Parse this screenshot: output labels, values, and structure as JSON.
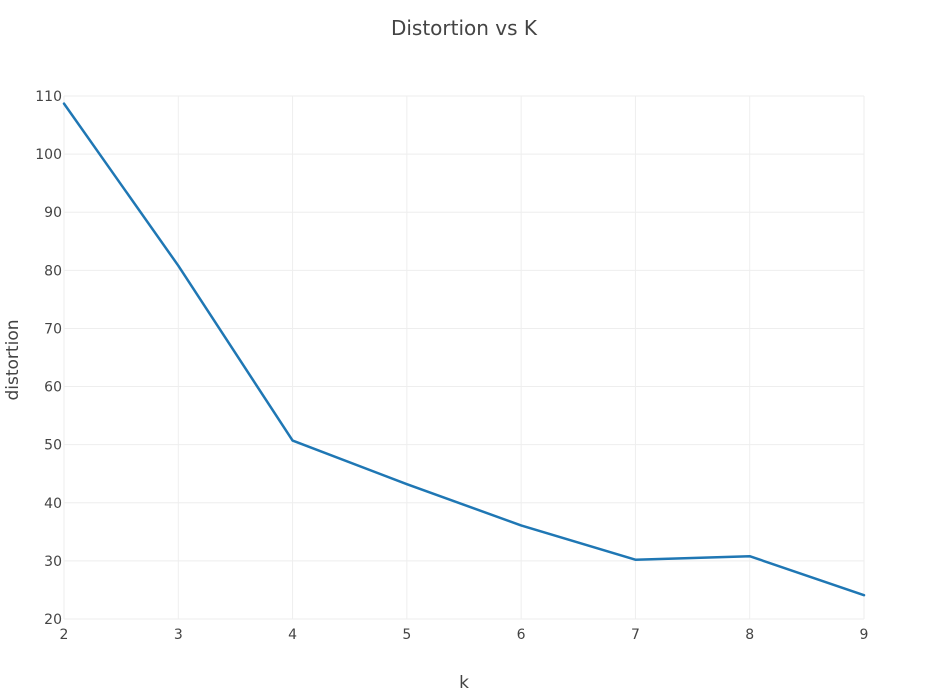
{
  "chart_data": {
    "type": "line",
    "title": "Distortion vs K",
    "xlabel": "k",
    "ylabel": "distortion",
    "xlim": [
      2,
      9
    ],
    "ylim": [
      20,
      110
    ],
    "x_ticks": [
      "2",
      "3",
      "4",
      "5",
      "6",
      "7",
      "8",
      "9"
    ],
    "y_ticks": [
      "20",
      "30",
      "40",
      "50",
      "60",
      "70",
      "80",
      "90",
      "100",
      "110"
    ],
    "grid": true,
    "legend": "none",
    "series": [
      {
        "color": "#1f77b4",
        "x": [
          2,
          3,
          4,
          5,
          6,
          7,
          8,
          9
        ],
        "y": [
          108.7,
          80.8,
          50.7,
          43.2,
          36.1,
          30.2,
          30.8,
          24.1
        ]
      }
    ]
  }
}
